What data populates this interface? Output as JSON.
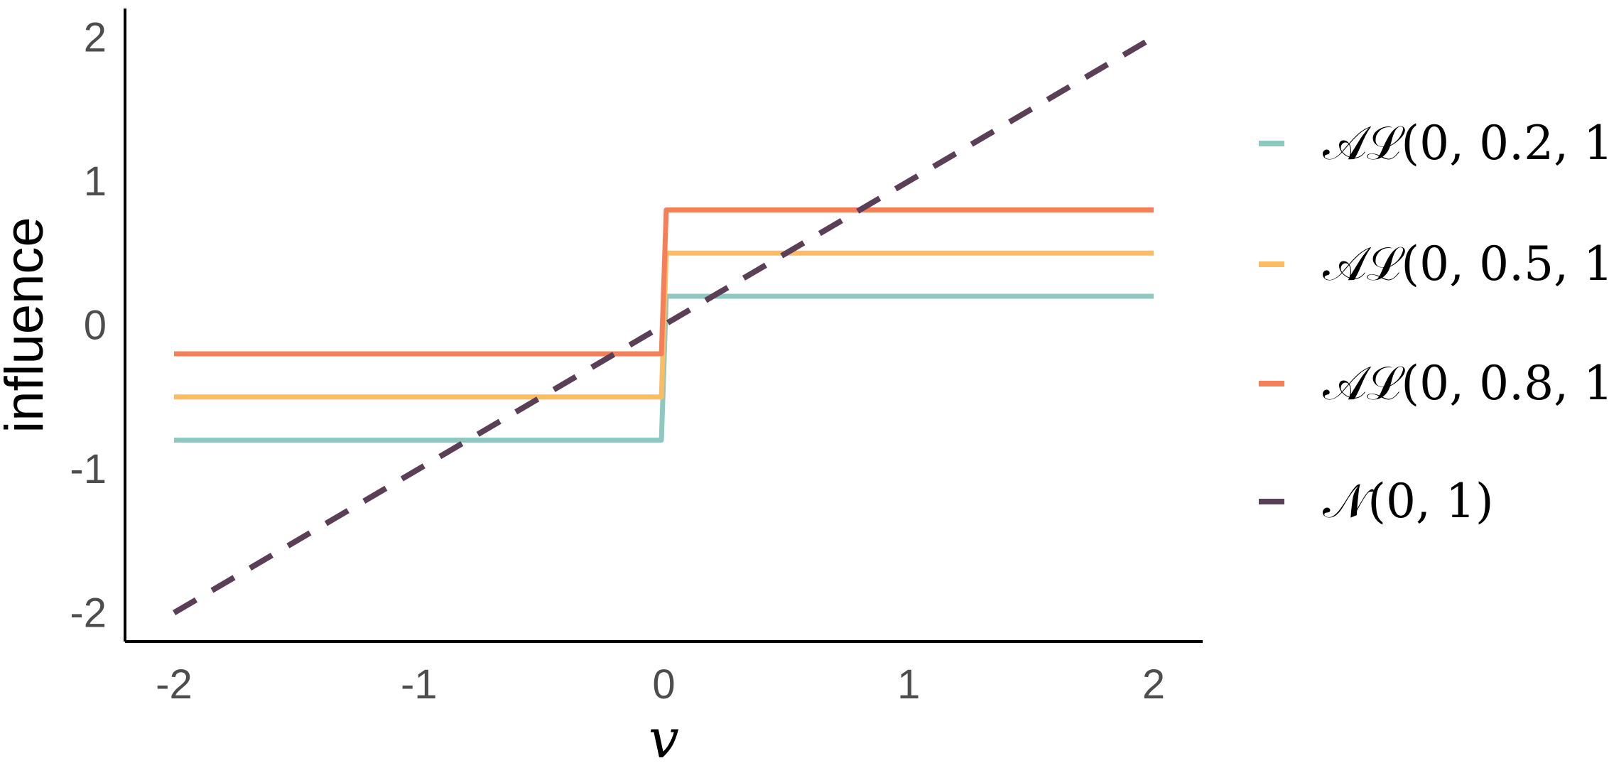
{
  "chart_data": {
    "type": "line",
    "title": "",
    "xlabel": "v",
    "ylabel": "influence",
    "xlim": [
      -2.2,
      2.2
    ],
    "ylim": [
      -2.2,
      2.2
    ],
    "xticks": [
      -2,
      -1,
      0,
      1,
      2
    ],
    "yticks": [
      -2,
      -1,
      0,
      1,
      2
    ],
    "xtick_labels": [
      "-2",
      "-1",
      "0",
      "1",
      "2"
    ],
    "ytick_labels": [
      "-2",
      "-1",
      "0",
      "1",
      "2"
    ],
    "grid": false,
    "legend_position": "right",
    "series": [
      {
        "name": "𝒜ℒ(0, 0.2, 1)",
        "color": "#8fc7c1",
        "style": "solid",
        "x": [
          -2,
          -0.01,
          0.01,
          2
        ],
        "y": [
          -0.8,
          -0.8,
          0.2,
          0.2
        ]
      },
      {
        "name": "𝒜ℒ(0, 0.5, 1)",
        "color": "#fbbc63",
        "style": "solid",
        "x": [
          -2,
          -0.01,
          0.01,
          2
        ],
        "y": [
          -0.5,
          -0.5,
          0.5,
          0.5
        ]
      },
      {
        "name": "𝒜ℒ(0, 0.8, 1)",
        "color": "#f47f58",
        "style": "solid",
        "x": [
          -2,
          -0.01,
          0.01,
          2
        ],
        "y": [
          -0.2,
          -0.2,
          0.8,
          0.8
        ]
      },
      {
        "name": "𝒩(0, 1)",
        "color": "#5a3f57",
        "style": "dashed",
        "x": [
          -2,
          2
        ],
        "y": [
          -2,
          2
        ]
      }
    ]
  }
}
